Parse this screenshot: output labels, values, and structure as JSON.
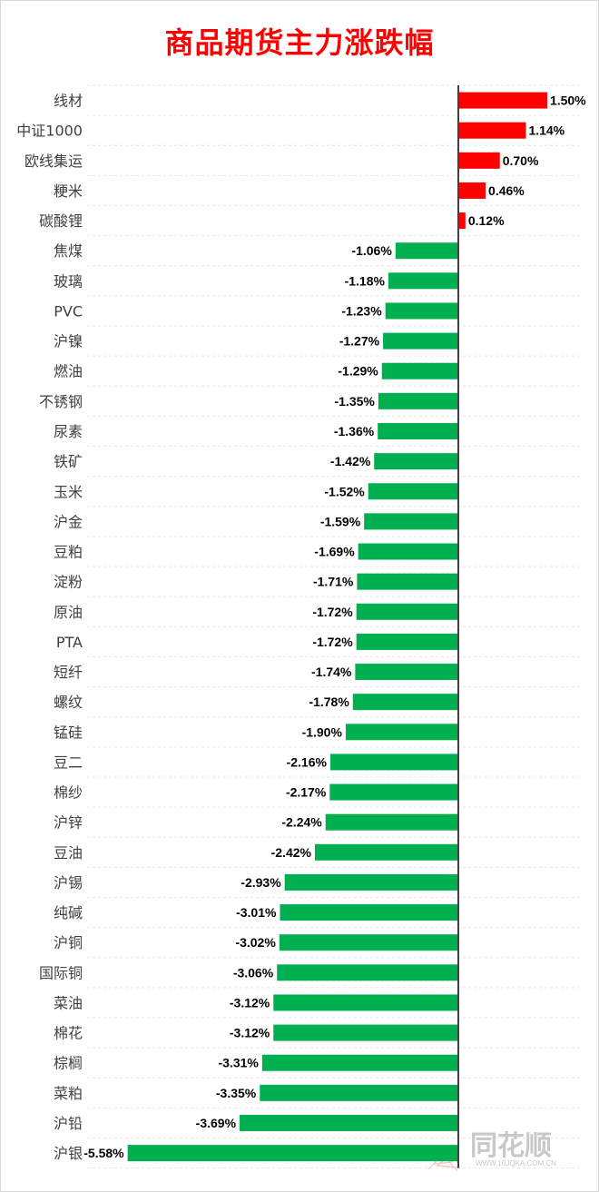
{
  "title": "商品期货主力涨跌幅",
  "watermark": {
    "brand": "同花顺",
    "url": "WWW.10JQKA.COM.CN"
  },
  "colors": {
    "up": "#ff0000",
    "down": "#00b050",
    "title": "#ff0000",
    "axis": "#404040"
  },
  "chart_data": {
    "type": "bar",
    "orientation": "horizontal",
    "title": "商品期货主力涨跌幅",
    "unit": "%",
    "categories": [
      "线材",
      "中证1000",
      "欧线集运",
      "粳米",
      "碳酸锂",
      "焦煤",
      "玻璃",
      "PVC",
      "沪镍",
      "燃油",
      "不锈钢",
      "尿素",
      "铁矿",
      "玉米",
      "沪金",
      "豆粕",
      "淀粉",
      "原油",
      "PTA",
      "短纤",
      "螺纹",
      "锰硅",
      "豆二",
      "棉纱",
      "沪锌",
      "豆油",
      "沪锡",
      "纯碱",
      "沪铜",
      "国际铜",
      "菜油",
      "棉花",
      "棕榈",
      "菜粕",
      "沪铅",
      "沪银"
    ],
    "values": [
      1.5,
      1.14,
      0.7,
      0.46,
      0.12,
      -1.06,
      -1.18,
      -1.23,
      -1.27,
      -1.29,
      -1.35,
      -1.36,
      -1.42,
      -1.52,
      -1.59,
      -1.69,
      -1.71,
      -1.72,
      -1.72,
      -1.74,
      -1.78,
      -1.9,
      -2.16,
      -2.17,
      -2.24,
      -2.42,
      -2.93,
      -3.01,
      -3.02,
      -3.06,
      -3.12,
      -3.12,
      -3.31,
      -3.35,
      -3.69,
      -5.58
    ],
    "labels": [
      "1.50%",
      "1.14%",
      "0.70%",
      "0.46%",
      "0.12%",
      "-1.06%",
      "-1.18%",
      "-1.23%",
      "-1.27%",
      "-1.29%",
      "-1.35%",
      "-1.36%",
      "-1.42%",
      "-1.52%",
      "-1.59%",
      "-1.69%",
      "-1.71%",
      "-1.72%",
      "-1.72%",
      "-1.74%",
      "-1.78%",
      "-1.90%",
      "-2.16%",
      "-2.17%",
      "-2.24%",
      "-2.42%",
      "-2.93%",
      "-3.01%",
      "-3.02%",
      "-3.06%",
      "-3.12%",
      "-3.12%",
      "-3.31%",
      "-3.35%",
      "-3.69%",
      "-5.58%"
    ],
    "grid": true,
    "legend": "none"
  }
}
